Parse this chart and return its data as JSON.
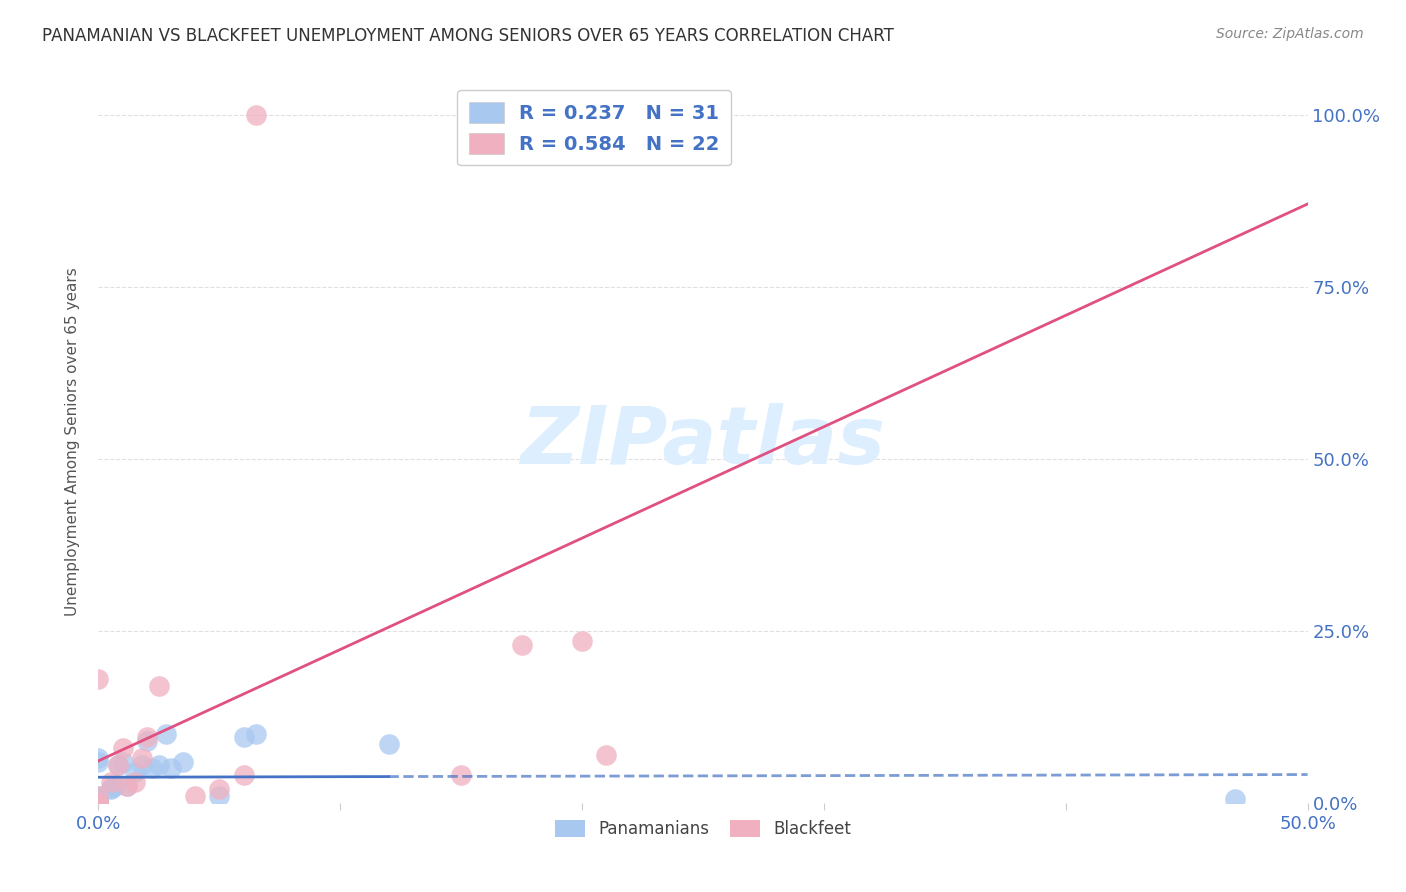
{
  "title": "PANAMANIAN VS BLACKFEET UNEMPLOYMENT AMONG SENIORS OVER 65 YEARS CORRELATION CHART",
  "source": "Source: ZipAtlas.com",
  "ylabel": "Unemployment Among Seniors over 65 years",
  "xlim": [
    0.0,
    0.5
  ],
  "ylim": [
    0.0,
    1.05
  ],
  "x_tick_vals": [
    0.0,
    0.1,
    0.2,
    0.3,
    0.4,
    0.5
  ],
  "x_tick_labels": [
    "0.0%",
    "",
    "",
    "",
    "",
    "50.0%"
  ],
  "y_tick_vals": [
    0.0,
    0.25,
    0.5,
    0.75,
    1.0
  ],
  "y_tick_labels_right": [
    "0.0%",
    "25.0%",
    "50.0%",
    "75.0%",
    "100.0%"
  ],
  "panamanian_x": [
    0.0,
    0.0,
    0.0,
    0.0,
    0.0,
    0.0,
    0.0,
    0.0,
    0.0,
    0.0,
    0.0,
    0.0,
    0.005,
    0.005,
    0.007,
    0.008,
    0.01,
    0.012,
    0.015,
    0.018,
    0.02,
    0.022,
    0.025,
    0.028,
    0.03,
    0.035,
    0.05,
    0.06,
    0.065,
    0.12,
    0.47
  ],
  "panamanian_y": [
    0.0,
    0.0,
    0.0,
    0.0,
    0.0,
    0.0,
    0.005,
    0.005,
    0.008,
    0.01,
    0.06,
    0.065,
    0.02,
    0.022,
    0.025,
    0.055,
    0.06,
    0.025,
    0.045,
    0.055,
    0.09,
    0.05,
    0.055,
    0.1,
    0.05,
    0.06,
    0.01,
    0.095,
    0.1,
    0.085,
    0.005
  ],
  "blackfeet_x": [
    0.0,
    0.0,
    0.0,
    0.0,
    0.0,
    0.005,
    0.008,
    0.01,
    0.012,
    0.015,
    0.018,
    0.02,
    0.025,
    0.04,
    0.05,
    0.06,
    0.065,
    0.15,
    0.175,
    0.2,
    0.2,
    0.21
  ],
  "blackfeet_y": [
    0.0,
    0.0,
    0.0,
    0.01,
    0.18,
    0.03,
    0.055,
    0.08,
    0.025,
    0.03,
    0.065,
    0.095,
    0.17,
    0.01,
    0.02,
    0.04,
    1.0,
    0.04,
    0.23,
    1.0,
    0.235,
    0.07
  ],
  "pana_color": "#a8c8f0",
  "pana_line_color": "#4472c4",
  "blackfeet_color": "#f0b0c0",
  "blackfeet_line_color": "#e05080",
  "background_color": "#ffffff",
  "grid_color": "#e0e0e0",
  "watermark_text": "ZIPatlas",
  "watermark_color": "#ddeeff",
  "legend_text_color": "#4472c4",
  "title_color": "#333333",
  "source_color": "#888888",
  "tick_label_color": "#4472c4"
}
